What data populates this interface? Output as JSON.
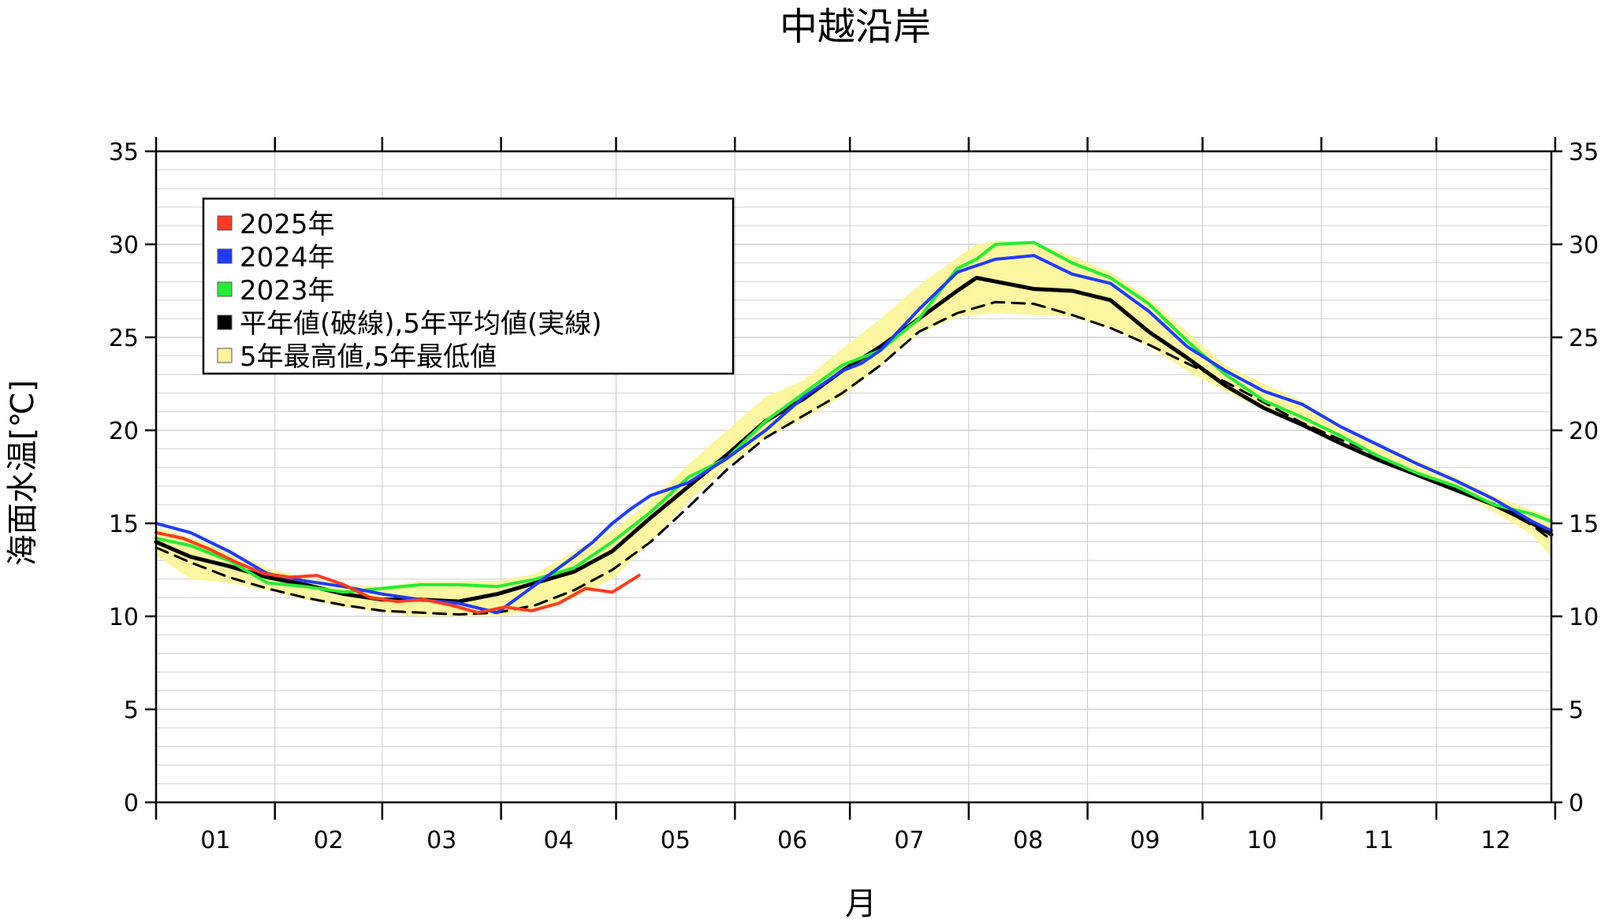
{
  "chart_data": {
    "type": "line",
    "title": "中越沿岸",
    "xlabel": "月",
    "ylabel": "海面水温[℃]",
    "x_tick_labels": [
      "01",
      "02",
      "03",
      "04",
      "05",
      "06",
      "07",
      "08",
      "09",
      "10",
      "11",
      "12"
    ],
    "y_ticks": [
      0,
      5,
      10,
      15,
      20,
      25,
      30,
      35
    ],
    "ylim": [
      0,
      35
    ],
    "xlim": [
      1,
      365
    ],
    "grid": true,
    "legend_position": "top-left",
    "legend": [
      {
        "label": "2025年",
        "color": "#ff3b1f"
      },
      {
        "label": "2024年",
        "color": "#1f3bff"
      },
      {
        "label": "2023年",
        "color": "#22ee33"
      },
      {
        "label": "平年値(破線),5年平均値(実線)",
        "color": "#000000"
      },
      {
        "label": "5年最高値,5年最低値",
        "color": "#fbf59a"
      }
    ],
    "series": [
      {
        "name": "2025年",
        "color": "#ff3b1f",
        "x": [
          1,
          8,
          15,
          22,
          29,
          36,
          43,
          50,
          57,
          64,
          71,
          78,
          85,
          92,
          99,
          106,
          113,
          120,
          127
        ],
        "y": [
          14.5,
          14.2,
          13.6,
          12.9,
          12.3,
          12.1,
          12.2,
          11.7,
          11.0,
          10.8,
          10.9,
          10.6,
          10.2,
          10.5,
          10.3,
          10.7,
          11.5,
          11.3,
          12.2
        ]
      },
      {
        "name": "2024年",
        "color": "#1f3bff",
        "x": [
          1,
          10,
          20,
          30,
          40,
          50,
          60,
          70,
          80,
          90,
          100,
          110,
          115,
          120,
          125,
          130,
          140,
          150,
          160,
          170,
          180,
          185,
          190,
          200,
          210,
          220,
          230,
          240,
          250,
          260,
          270,
          280,
          290,
          300,
          310,
          320,
          330,
          340,
          350,
          360,
          365
        ],
        "y": [
          15.0,
          14.5,
          13.5,
          12.3,
          11.9,
          11.6,
          11.2,
          10.9,
          10.7,
          10.2,
          11.7,
          13.2,
          14.0,
          15.0,
          15.8,
          16.5,
          17.2,
          18.5,
          20.0,
          21.8,
          23.2,
          23.6,
          24.3,
          26.5,
          28.5,
          29.2,
          29.4,
          28.4,
          27.9,
          26.4,
          24.5,
          23.2,
          22.1,
          21.4,
          20.2,
          19.2,
          18.2,
          17.3,
          16.3,
          15.1,
          14.6
        ]
      },
      {
        "name": "2023年",
        "color": "#22ee33",
        "x": [
          1,
          10,
          20,
          30,
          40,
          50,
          60,
          70,
          80,
          90,
          100,
          110,
          115,
          120,
          125,
          130,
          140,
          150,
          160,
          170,
          180,
          190,
          200,
          210,
          215,
          220,
          230,
          240,
          250,
          260,
          270,
          280,
          290,
          300,
          310,
          320,
          330,
          340,
          350,
          360,
          365
        ],
        "y": [
          14.2,
          13.8,
          13.0,
          11.8,
          11.6,
          11.3,
          11.5,
          11.7,
          11.7,
          11.6,
          12.0,
          12.6,
          13.3,
          14.0,
          14.8,
          15.6,
          17.5,
          18.5,
          20.5,
          22.0,
          23.5,
          24.3,
          26.0,
          28.7,
          29.2,
          30.0,
          30.1,
          29.0,
          28.2,
          26.8,
          24.8,
          23.0,
          21.6,
          20.7,
          19.7,
          18.6,
          17.7,
          17.0,
          16.0,
          15.5,
          15.1
        ]
      },
      {
        "name": "5年平均値",
        "color": "#000000",
        "dash": false,
        "x": [
          1,
          10,
          20,
          30,
          40,
          50,
          60,
          70,
          80,
          90,
          100,
          110,
          120,
          130,
          140,
          150,
          160,
          170,
          180,
          190,
          200,
          210,
          215,
          220,
          230,
          240,
          250,
          260,
          270,
          280,
          290,
          300,
          310,
          320,
          330,
          340,
          350,
          360,
          365
        ],
        "y": [
          14.0,
          13.2,
          12.7,
          12.1,
          11.7,
          11.2,
          10.9,
          10.9,
          10.8,
          11.2,
          11.8,
          12.4,
          13.5,
          15.3,
          17.0,
          18.7,
          20.5,
          21.7,
          23.2,
          24.5,
          26.0,
          27.5,
          28.2,
          28.0,
          27.6,
          27.5,
          27.0,
          25.3,
          23.9,
          22.4,
          21.2,
          20.3,
          19.3,
          18.4,
          17.6,
          16.8,
          16.0,
          15.0,
          14.4
        ]
      },
      {
        "name": "平年値",
        "color": "#000000",
        "dash": true,
        "x": [
          1,
          10,
          20,
          30,
          40,
          50,
          60,
          70,
          80,
          90,
          100,
          110,
          120,
          130,
          140,
          150,
          160,
          170,
          180,
          190,
          200,
          210,
          220,
          230,
          240,
          250,
          260,
          270,
          280,
          290,
          300,
          310,
          320,
          330,
          340,
          350,
          360,
          365
        ],
        "y": [
          13.7,
          12.9,
          12.1,
          11.5,
          11.0,
          10.6,
          10.3,
          10.2,
          10.1,
          10.2,
          10.6,
          11.4,
          12.5,
          14.0,
          15.9,
          17.9,
          19.6,
          20.8,
          22.0,
          23.5,
          25.3,
          26.3,
          26.9,
          26.8,
          26.2,
          25.5,
          24.6,
          23.6,
          22.6,
          21.5,
          20.4,
          19.5,
          18.6,
          17.7,
          16.9,
          16.0,
          14.9,
          14.1
        ]
      },
      {
        "name": "5年最高値",
        "color": "#fbf59a",
        "role": "band-upper",
        "x": [
          1,
          10,
          20,
          30,
          40,
          50,
          60,
          70,
          80,
          90,
          100,
          110,
          120,
          130,
          140,
          150,
          160,
          170,
          180,
          190,
          200,
          210,
          215,
          220,
          230,
          240,
          250,
          260,
          270,
          280,
          290,
          300,
          310,
          320,
          330,
          340,
          350,
          360,
          365
        ],
        "y": [
          14.8,
          14.2,
          13.6,
          12.6,
          12.1,
          11.7,
          11.6,
          11.9,
          11.9,
          11.9,
          12.3,
          13.5,
          14.6,
          16.2,
          18.2,
          20.0,
          21.8,
          22.7,
          24.4,
          26.0,
          27.8,
          29.3,
          30.0,
          30.2,
          30.1,
          29.4,
          28.5,
          27.1,
          25.3,
          23.5,
          22.5,
          21.6,
          20.3,
          19.3,
          18.4,
          17.5,
          16.5,
          15.7,
          15.4
        ]
      },
      {
        "name": "5年最低値",
        "color": "#fbf59a",
        "role": "band-lower",
        "x": [
          1,
          10,
          20,
          30,
          40,
          50,
          60,
          70,
          80,
          90,
          100,
          110,
          120,
          130,
          140,
          150,
          160,
          170,
          180,
          190,
          200,
          210,
          220,
          230,
          240,
          250,
          260,
          270,
          280,
          290,
          300,
          310,
          320,
          330,
          340,
          350,
          360,
          365
        ],
        "y": [
          13.3,
          12.0,
          11.8,
          11.4,
          10.9,
          10.5,
          10.2,
          10.0,
          10.0,
          10.0,
          10.3,
          11.0,
          12.0,
          14.0,
          16.2,
          18.1,
          19.6,
          20.6,
          21.8,
          23.5,
          25.2,
          26.1,
          26.3,
          26.2,
          26.1,
          25.5,
          24.5,
          23.2,
          22.1,
          21.1,
          20.3,
          19.5,
          18.6,
          17.7,
          16.8,
          15.6,
          14.4,
          13.2
        ]
      }
    ]
  }
}
